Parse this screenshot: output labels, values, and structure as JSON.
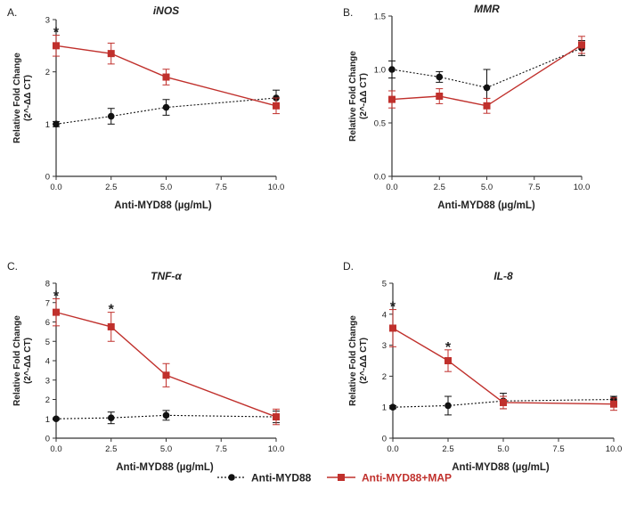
{
  "legend": {
    "series_a": "Anti-MYD88",
    "series_b": "Anti-MYD88+MAP"
  },
  "colors": {
    "anti_myd88": "#111111",
    "anti_myd88_map": "#c0302c",
    "axis": "#333333"
  },
  "chart_data": [
    {
      "type": "line",
      "panel_label": "A.",
      "title": "iNOS",
      "xlabel": "Anti-MYD88 (µg/mL)",
      "ylabel_line1": "Relative Fold Change",
      "ylabel_line2": "(2^-ΔΔ CT)",
      "x": [
        0,
        2.5,
        5,
        10
      ],
      "xticks": [
        "0.0",
        "2.5",
        "5.0",
        "7.5",
        "10.0"
      ],
      "xtick_values": [
        0,
        2.5,
        5,
        7.5,
        10
      ],
      "yticks": [
        "0",
        "1",
        "2",
        "3"
      ],
      "ytick_values": [
        0,
        1,
        2,
        3
      ],
      "xlim": [
        0,
        10
      ],
      "ylim": [
        0,
        3
      ],
      "annotation": "*",
      "star_positions": [
        0
      ],
      "series": [
        {
          "name": "Anti-MYD88",
          "values": [
            1.0,
            1.15,
            1.32,
            1.5
          ],
          "errors": [
            0.05,
            0.15,
            0.15,
            0.15
          ]
        },
        {
          "name": "Anti-MYD88+MAP",
          "values": [
            2.5,
            2.35,
            1.9,
            1.35
          ],
          "errors": [
            0.2,
            0.2,
            0.15,
            0.15
          ]
        }
      ]
    },
    {
      "type": "line",
      "panel_label": "B.",
      "title": "MMR",
      "xlabel": "Anti-MYD88 (µg/mL)",
      "ylabel_line1": "Relative Fold Change",
      "ylabel_line2": "(2^-ΔΔ CT)",
      "x": [
        0,
        2.5,
        5,
        10
      ],
      "xticks": [
        "0.0",
        "2.5",
        "5.0",
        "7.5",
        "10.0"
      ],
      "xtick_values": [
        0,
        2.5,
        5,
        7.5,
        10
      ],
      "yticks": [
        "0.0",
        "0.5",
        "1.0",
        "1.5"
      ],
      "ytick_values": [
        0,
        0.5,
        1.0,
        1.5
      ],
      "xlim": [
        0,
        10
      ],
      "ylim": [
        0,
        1.5
      ],
      "annotation": "",
      "star_positions": [],
      "series": [
        {
          "name": "Anti-MYD88",
          "values": [
            1.0,
            0.93,
            0.83,
            1.2
          ],
          "errors": [
            0.08,
            0.05,
            0.17,
            0.07
          ]
        },
        {
          "name": "Anti-MYD88+MAP",
          "values": [
            0.72,
            0.75,
            0.66,
            1.23
          ],
          "errors": [
            0.08,
            0.07,
            0.07,
            0.08
          ]
        }
      ]
    },
    {
      "type": "line",
      "panel_label": "C.",
      "title": "TNF-α",
      "xlabel": "Anti-MYD88 (µg/mL)",
      "ylabel_line1": "Relative Fold Change",
      "ylabel_line2": "(2^-ΔΔ CT)",
      "x": [
        0,
        2.5,
        5,
        10
      ],
      "xticks": [
        "0.0",
        "2.5",
        "5.0",
        "7.5",
        "10.0"
      ],
      "xtick_values": [
        0,
        2.5,
        5,
        7.5,
        10
      ],
      "yticks": [
        "0",
        "1",
        "2",
        "3",
        "4",
        "5",
        "6",
        "7",
        "8"
      ],
      "ytick_values": [
        0,
        1,
        2,
        3,
        4,
        5,
        6,
        7,
        8
      ],
      "xlim": [
        0,
        10
      ],
      "ylim": [
        0,
        8
      ],
      "annotation": "*",
      "star_positions": [
        0,
        2.5
      ],
      "series": [
        {
          "name": "Anti-MYD88",
          "values": [
            1.0,
            1.05,
            1.18,
            1.1
          ],
          "errors": [
            0.05,
            0.3,
            0.25,
            0.3
          ]
        },
        {
          "name": "Anti-MYD88+MAP",
          "values": [
            6.5,
            5.75,
            3.25,
            1.1
          ],
          "errors": [
            0.7,
            0.75,
            0.6,
            0.4
          ]
        }
      ]
    },
    {
      "type": "line",
      "panel_label": "D.",
      "title": "IL-8",
      "xlabel": "Anti-MYD88 (µg/mL)",
      "ylabel_line1": "Relative Fold Change",
      "ylabel_line2": "(2^-ΔΔ CT)",
      "x": [
        0,
        2.5,
        5,
        10
      ],
      "xticks": [
        "0.0",
        "2.5",
        "5.0",
        "7.5",
        "10.0"
      ],
      "xtick_values": [
        0,
        2.5,
        5,
        7.5,
        10
      ],
      "yticks": [
        "0",
        "1",
        "2",
        "3",
        "4",
        "5"
      ],
      "ytick_values": [
        0,
        1,
        2,
        3,
        4,
        5
      ],
      "xlim": [
        0,
        10
      ],
      "ylim": [
        0,
        5
      ],
      "annotation": "*",
      "star_positions": [
        0,
        2.5
      ],
      "series": [
        {
          "name": "Anti-MYD88",
          "values": [
            1.0,
            1.05,
            1.2,
            1.25
          ],
          "errors": [
            0.05,
            0.3,
            0.25,
            0.1
          ]
        },
        {
          "name": "Anti-MYD88+MAP",
          "values": [
            3.55,
            2.5,
            1.15,
            1.1
          ],
          "errors": [
            0.6,
            0.35,
            0.2,
            0.2
          ]
        }
      ]
    }
  ]
}
